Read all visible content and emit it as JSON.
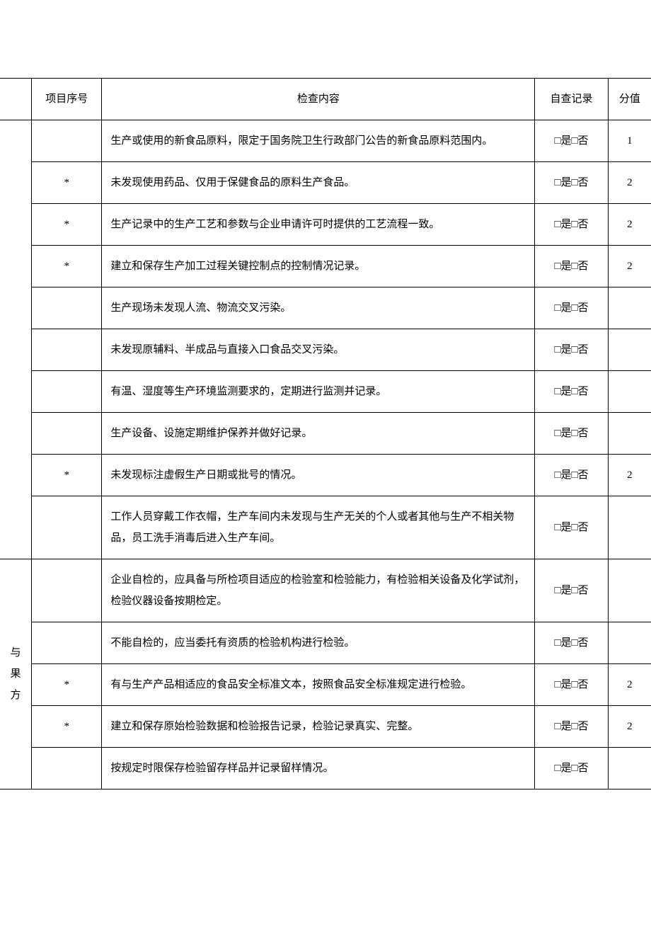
{
  "header": {
    "seq": "项目序号",
    "content": "检查内容",
    "record": "自查记录",
    "score": "分值"
  },
  "record_label": "□是□否",
  "groups": [
    {
      "category": "",
      "rows": [
        {
          "seq": "",
          "content": "生产或使用的新食品原料，限定于国务院卫生行政部门公告的新食品原料范围内。",
          "score": "1"
        },
        {
          "seq": "*",
          "content": "未发现使用药品、仅用于保健食品的原料生产食品。",
          "score": "2"
        },
        {
          "seq": "*",
          "content": "生产记录中的生产工艺和参数与企业申请许可时提供的工艺流程一致。",
          "score": "2"
        },
        {
          "seq": "*",
          "content": "建立和保存生产加工过程关键控制点的控制情况记录。",
          "score": "2"
        },
        {
          "seq": "",
          "content": "生产现场未发现人流、物流交叉污染。",
          "score": ""
        },
        {
          "seq": "",
          "content": "未发现原辅料、半成品与直接入口食品交叉污染。",
          "score": ""
        },
        {
          "seq": "",
          "content": "有温、湿度等生产环境监测要求的，定期进行监测并记录。",
          "score": ""
        },
        {
          "seq": "",
          "content": "生产设备、设施定期维护保养并做好记录。",
          "score": ""
        },
        {
          "seq": "*",
          "content": "未发现标注虚假生产日期或批号的情况。",
          "score": "2"
        },
        {
          "seq": "",
          "content": "工作人员穿戴工作衣帽，生产车间内未发现与生产无关的个人或者其他与生产不相关物品，员工洗手消毒后进入生产车间。",
          "score": ""
        }
      ]
    },
    {
      "category": "与果方",
      "rows": [
        {
          "seq": "",
          "content": "企业自检的，应具备与所检项目适应的检验室和检验能力，有检验相关设备及化学试剂，检验仪器设备按期检定。",
          "score": ""
        },
        {
          "seq": "",
          "content": "不能自检的，应当委托有资质的检验机构进行检验。",
          "score": ""
        },
        {
          "seq": "*",
          "content": "有与生产产品相适应的食品安全标准文本，按照食品安全标准规定进行检验。",
          "score": "2"
        },
        {
          "seq": "*",
          "content": "建立和保存原始检验数据和检验报告记录，检验记录真实、完整。",
          "score": "2"
        },
        {
          "seq": "",
          "content": "按规定时限保存检验留存样品并记录留样情况。",
          "score": ""
        }
      ]
    }
  ]
}
